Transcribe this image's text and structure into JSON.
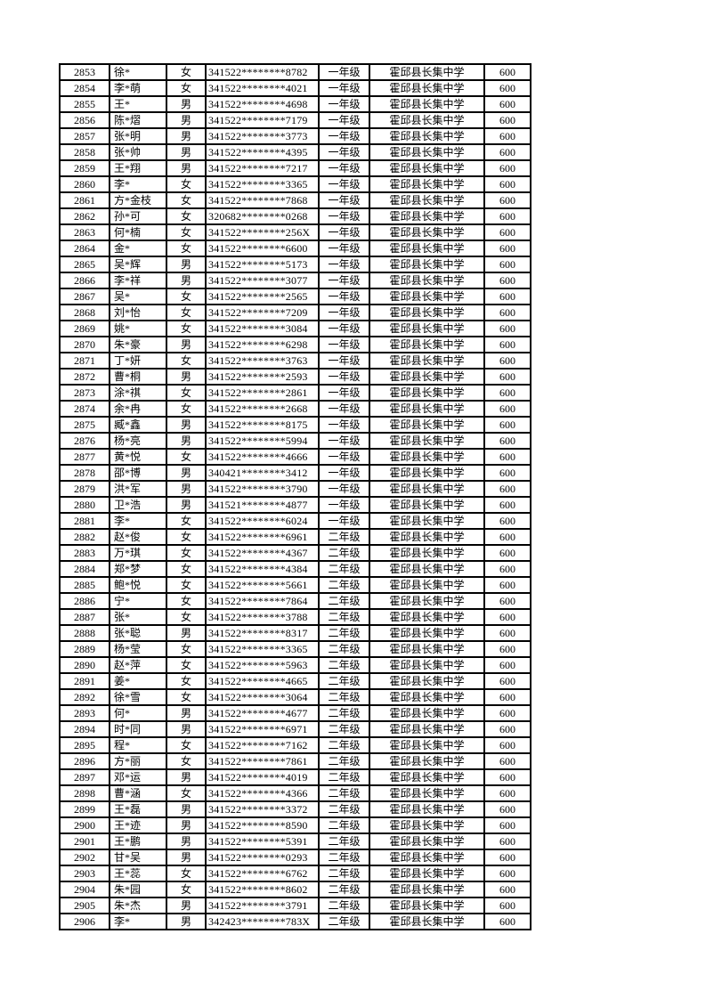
{
  "page": {
    "background_color": "#ffffff",
    "border_color": "#000000",
    "text_color": "#000000"
  },
  "table": {
    "column_semantics": [
      "sequence-number",
      "masked-name",
      "gender",
      "masked-id-number",
      "grade",
      "school",
      "amount"
    ],
    "rows": [
      [
        "2853",
        "徐*",
        "女",
        "341522********8782",
        "一年级",
        "霍邱县长集中学",
        "600"
      ],
      [
        "2854",
        "李*萌",
        "女",
        "341522********4021",
        "一年级",
        "霍邱县长集中学",
        "600"
      ],
      [
        "2855",
        "王*",
        "男",
        "341522********4698",
        "一年级",
        "霍邱县长集中学",
        "600"
      ],
      [
        "2856",
        "陈*熠",
        "男",
        "341522********7179",
        "一年级",
        "霍邱县长集中学",
        "600"
      ],
      [
        "2857",
        "张*明",
        "男",
        "341522********3773",
        "一年级",
        "霍邱县长集中学",
        "600"
      ],
      [
        "2858",
        "张*帅",
        "男",
        "341522********4395",
        "一年级",
        "霍邱县长集中学",
        "600"
      ],
      [
        "2859",
        "王*翔",
        "男",
        "341522********7217",
        "一年级",
        "霍邱县长集中学",
        "600"
      ],
      [
        "2860",
        "李*",
        "女",
        "341522********3365",
        "一年级",
        "霍邱县长集中学",
        "600"
      ],
      [
        "2861",
        "方*金枝",
        "女",
        "341522********7868",
        "一年级",
        "霍邱县长集中学",
        "600"
      ],
      [
        "2862",
        "孙*可",
        "女",
        "320682********0268",
        "一年级",
        "霍邱县长集中学",
        "600"
      ],
      [
        "2863",
        "何*楠",
        "女",
        "341522********256X",
        "一年级",
        "霍邱县长集中学",
        "600"
      ],
      [
        "2864",
        "金*",
        "女",
        "341522********6600",
        "一年级",
        "霍邱县长集中学",
        "600"
      ],
      [
        "2865",
        "吴*辉",
        "男",
        "341522********5173",
        "一年级",
        "霍邱县长集中学",
        "600"
      ],
      [
        "2866",
        "李*祥",
        "男",
        "341522********3077",
        "一年级",
        "霍邱县长集中学",
        "600"
      ],
      [
        "2867",
        "吴*",
        "女",
        "341522********2565",
        "一年级",
        "霍邱县长集中学",
        "600"
      ],
      [
        "2868",
        "刘*怡",
        "女",
        "341522********7209",
        "一年级",
        "霍邱县长集中学",
        "600"
      ],
      [
        "2869",
        "姚*",
        "女",
        "341522********3084",
        "一年级",
        "霍邱县长集中学",
        "600"
      ],
      [
        "2870",
        "朱*豪",
        "男",
        "341522********6298",
        "一年级",
        "霍邱县长集中学",
        "600"
      ],
      [
        "2871",
        "丁*妍",
        "女",
        "341522********3763",
        "一年级",
        "霍邱县长集中学",
        "600"
      ],
      [
        "2872",
        "曹*桐",
        "男",
        "341522********2593",
        "一年级",
        "霍邱县长集中学",
        "600"
      ],
      [
        "2873",
        "涂*祺",
        "女",
        "341522********2861",
        "一年级",
        "霍邱县长集中学",
        "600"
      ],
      [
        "2874",
        "余*冉",
        "女",
        "341522********2668",
        "一年级",
        "霍邱县长集中学",
        "600"
      ],
      [
        "2875",
        "臧*鑫",
        "男",
        "341522********8175",
        "一年级",
        "霍邱县长集中学",
        "600"
      ],
      [
        "2876",
        "杨*亮",
        "男",
        "341522********5994",
        "一年级",
        "霍邱县长集中学",
        "600"
      ],
      [
        "2877",
        "黄*悦",
        "女",
        "341522********4666",
        "一年级",
        "霍邱县长集中学",
        "600"
      ],
      [
        "2878",
        "邵*博",
        "男",
        "340421********3412",
        "一年级",
        "霍邱县长集中学",
        "600"
      ],
      [
        "2879",
        "洪*军",
        "男",
        "341522********3790",
        "一年级",
        "霍邱县长集中学",
        "600"
      ],
      [
        "2880",
        "卫*浩",
        "男",
        "341521********4877",
        "一年级",
        "霍邱县长集中学",
        "600"
      ],
      [
        "2881",
        "李*",
        "女",
        "341522********6024",
        "一年级",
        "霍邱县长集中学",
        "600"
      ],
      [
        "2882",
        "赵*俊",
        "女",
        "341522********6961",
        "二年级",
        "霍邱县长集中学",
        "600"
      ],
      [
        "2883",
        "万*琪",
        "女",
        "341522********4367",
        "二年级",
        "霍邱县长集中学",
        "600"
      ],
      [
        "2884",
        "郑*梦",
        "女",
        "341522********4384",
        "二年级",
        "霍邱县长集中学",
        "600"
      ],
      [
        "2885",
        "鲍*悦",
        "女",
        "341522********5661",
        "二年级",
        "霍邱县长集中学",
        "600"
      ],
      [
        "2886",
        "宁*",
        "女",
        "341522********7864",
        "二年级",
        "霍邱县长集中学",
        "600"
      ],
      [
        "2887",
        "张*",
        "女",
        "341522********3788",
        "二年级",
        "霍邱县长集中学",
        "600"
      ],
      [
        "2888",
        "张*聪",
        "男",
        "341522********8317",
        "二年级",
        "霍邱县长集中学",
        "600"
      ],
      [
        "2889",
        "杨*莹",
        "女",
        "341522********3365",
        "二年级",
        "霍邱县长集中学",
        "600"
      ],
      [
        "2890",
        "赵*萍",
        "女",
        "341522********5963",
        "二年级",
        "霍邱县长集中学",
        "600"
      ],
      [
        "2891",
        "姜*",
        "女",
        "341522********4665",
        "二年级",
        "霍邱县长集中学",
        "600"
      ],
      [
        "2892",
        "徐*雪",
        "女",
        "341522********3064",
        "二年级",
        "霍邱县长集中学",
        "600"
      ],
      [
        "2893",
        "何*",
        "男",
        "341522********4677",
        "二年级",
        "霍邱县长集中学",
        "600"
      ],
      [
        "2894",
        "时*同",
        "男",
        "341522********6971",
        "二年级",
        "霍邱县长集中学",
        "600"
      ],
      [
        "2895",
        "程*",
        "女",
        "341522********7162",
        "二年级",
        "霍邱县长集中学",
        "600"
      ],
      [
        "2896",
        "方*丽",
        "女",
        "341522********7861",
        "二年级",
        "霍邱县长集中学",
        "600"
      ],
      [
        "2897",
        "邓*运",
        "男",
        "341522********4019",
        "二年级",
        "霍邱县长集中学",
        "600"
      ],
      [
        "2898",
        "曹*涵",
        "女",
        "341522********4366",
        "二年级",
        "霍邱县长集中学",
        "600"
      ],
      [
        "2899",
        "王*磊",
        "男",
        "341522********3372",
        "二年级",
        "霍邱县长集中学",
        "600"
      ],
      [
        "2900",
        "王*迹",
        "男",
        "341522********8590",
        "二年级",
        "霍邱县长集中学",
        "600"
      ],
      [
        "2901",
        "王*鹏",
        "男",
        "341522********5391",
        "二年级",
        "霍邱县长集中学",
        "600"
      ],
      [
        "2902",
        "甘*吴",
        "男",
        "341522********0293",
        "二年级",
        "霍邱县长集中学",
        "600"
      ],
      [
        "2903",
        "王*蕊",
        "女",
        "341522********6762",
        "二年级",
        "霍邱县长集中学",
        "600"
      ],
      [
        "2904",
        "朱*园",
        "女",
        "341522********8602",
        "二年级",
        "霍邱县长集中学",
        "600"
      ],
      [
        "2905",
        "朱*杰",
        "男",
        "341522********3791",
        "二年级",
        "霍邱县长集中学",
        "600"
      ],
      [
        "2906",
        "李*",
        "男",
        "342423********783X",
        "二年级",
        "霍邱县长集中学",
        "600"
      ]
    ]
  }
}
